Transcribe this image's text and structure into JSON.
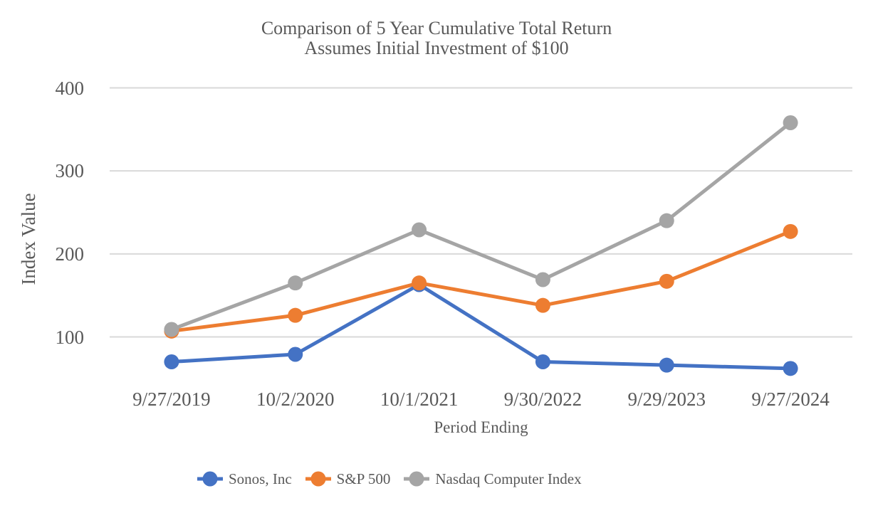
{
  "title": {
    "line1": "Comparison of 5 Year Cumulative Total Return",
    "line2": "Assumes Initial Investment of $100"
  },
  "chart_data": {
    "type": "line",
    "categories": [
      "9/27/2019",
      "10/2/2020",
      "10/1/2021",
      "9/30/2022",
      "9/29/2023",
      "9/27/2024"
    ],
    "series": [
      {
        "name": "Sonos, Inc",
        "color": "#4472C4",
        "values": [
          70,
          79,
          163,
          70,
          66,
          62
        ]
      },
      {
        "name": "S&P 500",
        "color": "#ED7D31",
        "values": [
          107,
          126,
          165,
          138,
          167,
          227
        ]
      },
      {
        "name": "Nasdaq Computer Index",
        "color": "#A5A5A5",
        "values": [
          109,
          165,
          229,
          169,
          240,
          358
        ]
      }
    ],
    "xlabel": "Period Ending",
    "ylabel": "Index Value",
    "y_ticks": [
      100,
      200,
      300,
      400
    ],
    "ylim": [
      40,
      420
    ],
    "grid": "horizontal-only",
    "legend_position": "bottom",
    "gridline_color": "#D9D9D9",
    "text_color": "#595959"
  }
}
